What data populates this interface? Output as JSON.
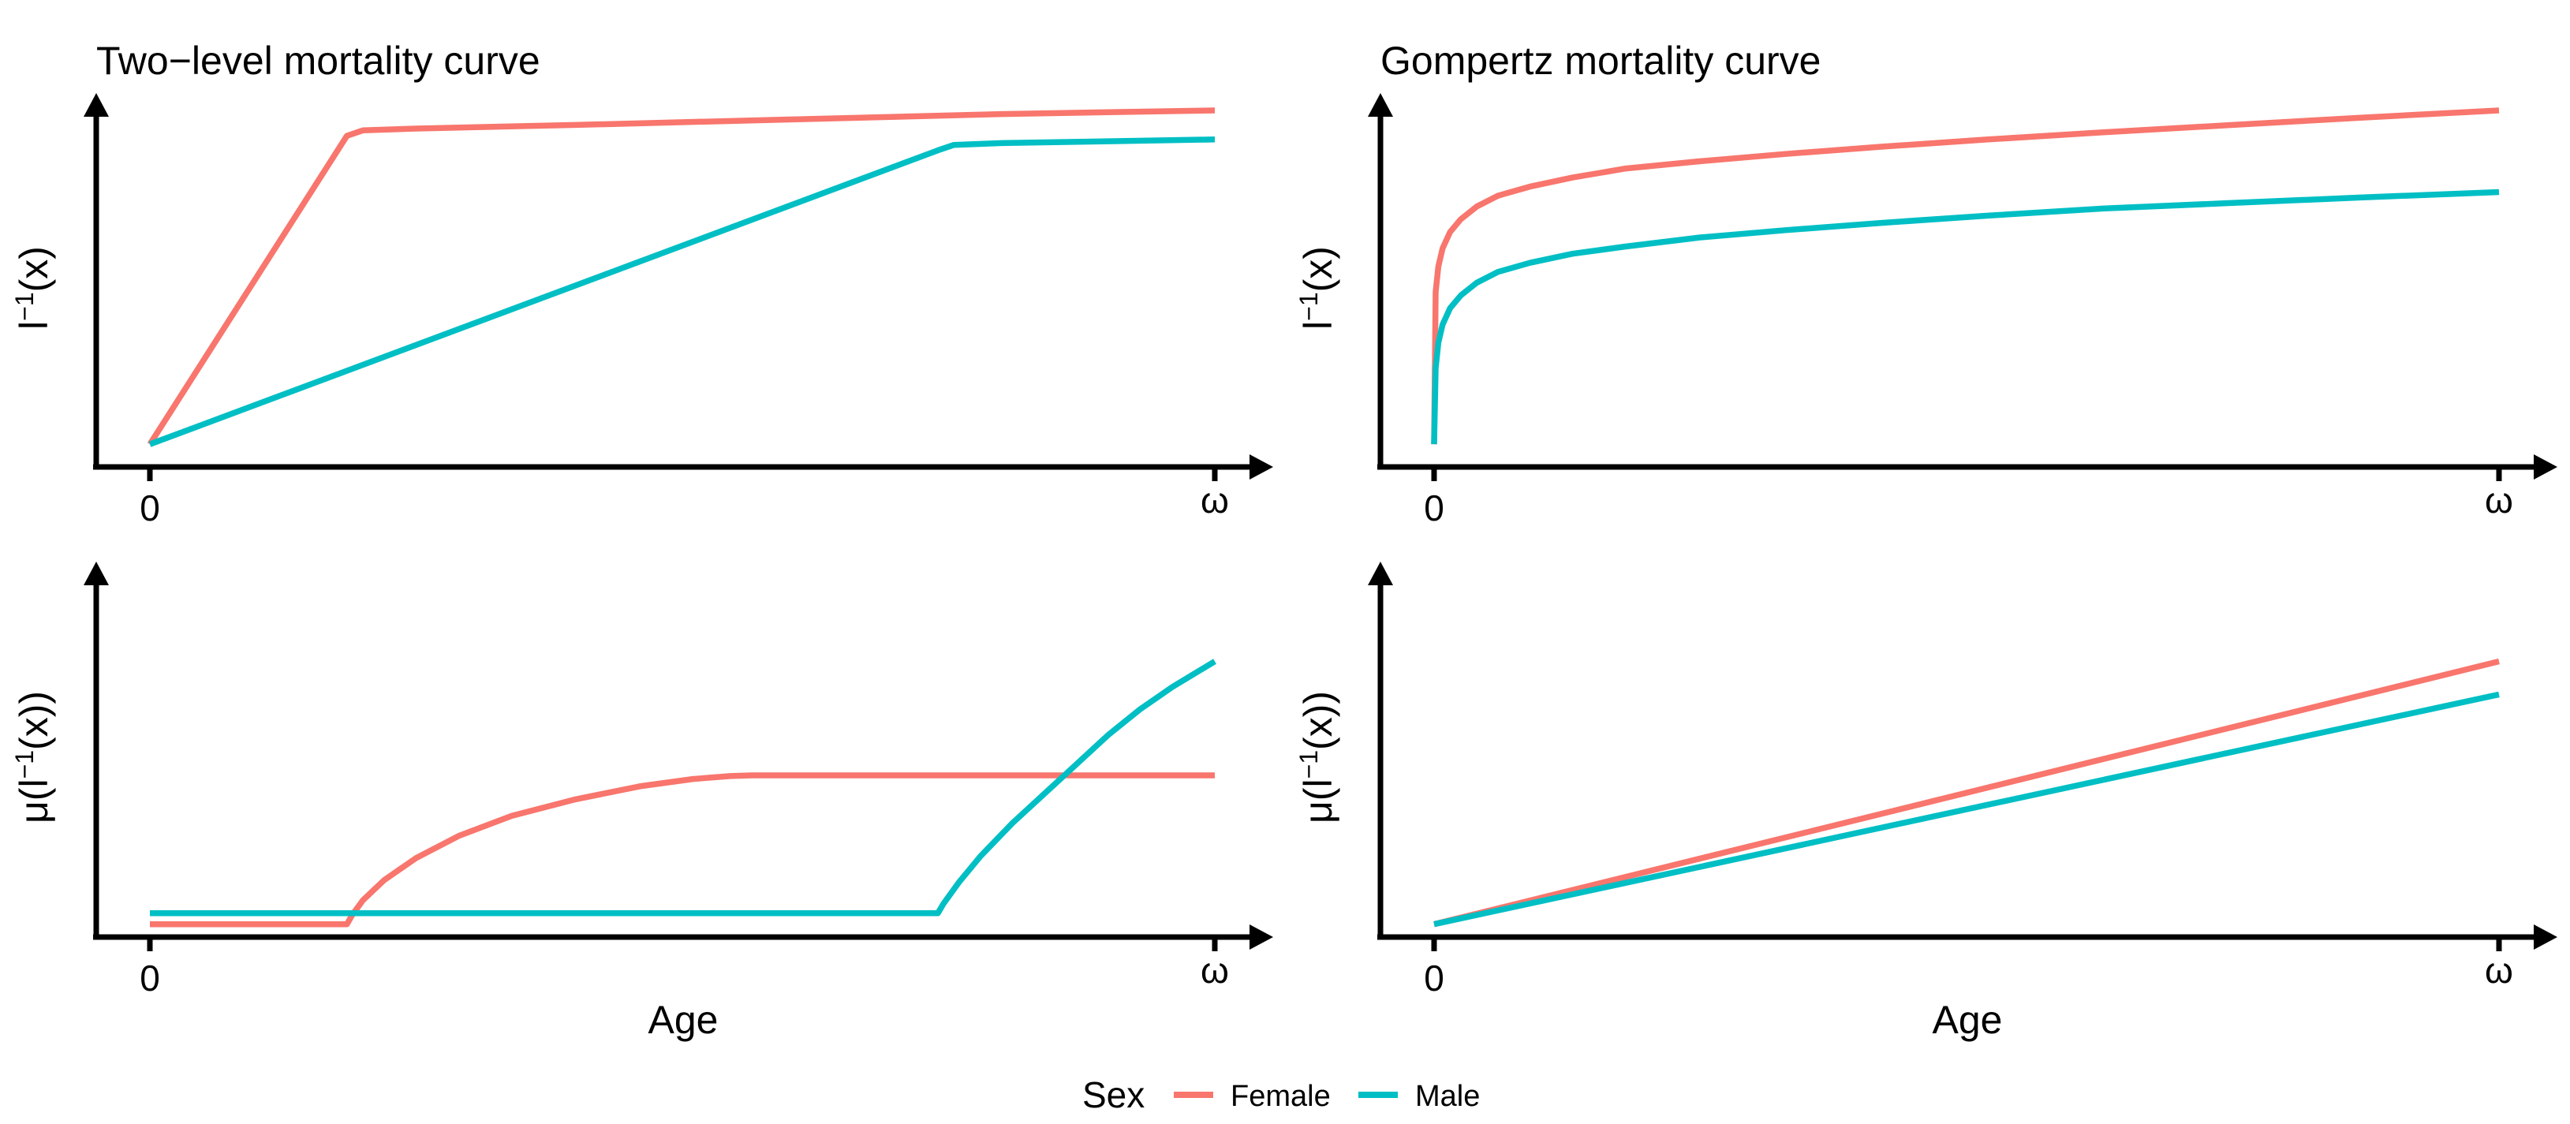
{
  "chart_data": [
    {
      "type": "line",
      "title": "Two−level mortality curve",
      "xlabel": "",
      "ylabel_parts": [
        "l",
        "−1",
        "(x)"
      ],
      "xticks": [
        "0",
        "ω"
      ],
      "xlim": [
        0,
        1
      ],
      "ylim": [
        0,
        1
      ],
      "series": [
        {
          "name": "Female",
          "x": [
            0,
            0.185,
            0.2,
            0.25,
            0.4,
            0.6,
            0.8,
            1.0
          ],
          "y": [
            0.08,
            0.93,
            0.945,
            0.95,
            0.96,
            0.975,
            0.99,
            1.0
          ]
        },
        {
          "name": "Male",
          "x": [
            0,
            0.74,
            0.755,
            0.8,
            0.9,
            1.0
          ],
          "y": [
            0.08,
            0.89,
            0.905,
            0.91,
            0.915,
            0.92
          ]
        }
      ]
    },
    {
      "type": "line",
      "title": "Gompertz mortality curve",
      "xlabel": "",
      "ylabel_parts": [
        "l",
        "−1",
        "(x)"
      ],
      "xticks": [
        "0",
        "ω"
      ],
      "xlim": [
        0,
        1
      ],
      "ylim": [
        0,
        1
      ],
      "series": [
        {
          "name": "Female",
          "x": [
            0,
            0.0015,
            0.004,
            0.008,
            0.015,
            0.025,
            0.04,
            0.06,
            0.09,
            0.13,
            0.18,
            0.25,
            0.33,
            0.42,
            0.52,
            0.63,
            0.75,
            0.87,
            1.0
          ],
          "y": [
            0.08,
            0.5,
            0.57,
            0.62,
            0.665,
            0.7,
            0.735,
            0.765,
            0.79,
            0.815,
            0.84,
            0.86,
            0.88,
            0.9,
            0.92,
            0.94,
            0.96,
            0.98,
            1.0
          ]
        },
        {
          "name": "Male",
          "x": [
            0,
            0.0015,
            0.004,
            0.008,
            0.015,
            0.025,
            0.04,
            0.06,
            0.09,
            0.13,
            0.18,
            0.25,
            0.33,
            0.42,
            0.52,
            0.63,
            0.75,
            0.87,
            1.0
          ],
          "y": [
            0.08,
            0.29,
            0.36,
            0.41,
            0.455,
            0.49,
            0.525,
            0.555,
            0.58,
            0.605,
            0.625,
            0.65,
            0.67,
            0.69,
            0.71,
            0.73,
            0.745,
            0.76,
            0.775
          ]
        }
      ]
    },
    {
      "type": "line",
      "title": "",
      "xlabel": "Age",
      "ylabel_parts": [
        "μ(l",
        "−1",
        "(x))"
      ],
      "xticks": [
        "0",
        "ω"
      ],
      "xlim": [
        0,
        1
      ],
      "ylim": [
        0,
        1
      ],
      "series": [
        {
          "name": "Female",
          "x": [
            0,
            0.185,
            0.19,
            0.2,
            0.22,
            0.25,
            0.29,
            0.34,
            0.4,
            0.46,
            0.51,
            0.545,
            0.565,
            0.6,
            0.8,
            1.0
          ],
          "y": [
            0.035,
            0.035,
            0.06,
            0.1,
            0.155,
            0.215,
            0.275,
            0.33,
            0.375,
            0.41,
            0.43,
            0.438,
            0.44,
            0.44,
            0.44,
            0.44
          ]
        },
        {
          "name": "Male",
          "x": [
            0,
            0.74,
            0.745,
            0.76,
            0.78,
            0.81,
            0.84,
            0.87,
            0.9,
            0.93,
            0.96,
            1.0
          ],
          "y": [
            0.065,
            0.065,
            0.09,
            0.15,
            0.22,
            0.31,
            0.39,
            0.47,
            0.55,
            0.62,
            0.68,
            0.75
          ]
        }
      ]
    },
    {
      "type": "line",
      "title": "",
      "xlabel": "Age",
      "ylabel_parts": [
        "μ(l",
        "−1",
        "(x))"
      ],
      "xticks": [
        "0",
        "ω"
      ],
      "xlim": [
        0,
        1
      ],
      "ylim": [
        0,
        1
      ],
      "series": [
        {
          "name": "Female",
          "x": [
            0,
            1.0
          ],
          "y": [
            0.035,
            0.75
          ]
        },
        {
          "name": "Male",
          "x": [
            0,
            1.0
          ],
          "y": [
            0.035,
            0.66
          ]
        }
      ]
    }
  ],
  "legend": {
    "title": "Sex",
    "items": [
      {
        "label": "Female",
        "color": "#F8766D"
      },
      {
        "label": "Male",
        "color": "#00BFC4"
      }
    ]
  },
  "colors": {
    "Female": "#F8766D",
    "Male": "#00BFC4"
  }
}
